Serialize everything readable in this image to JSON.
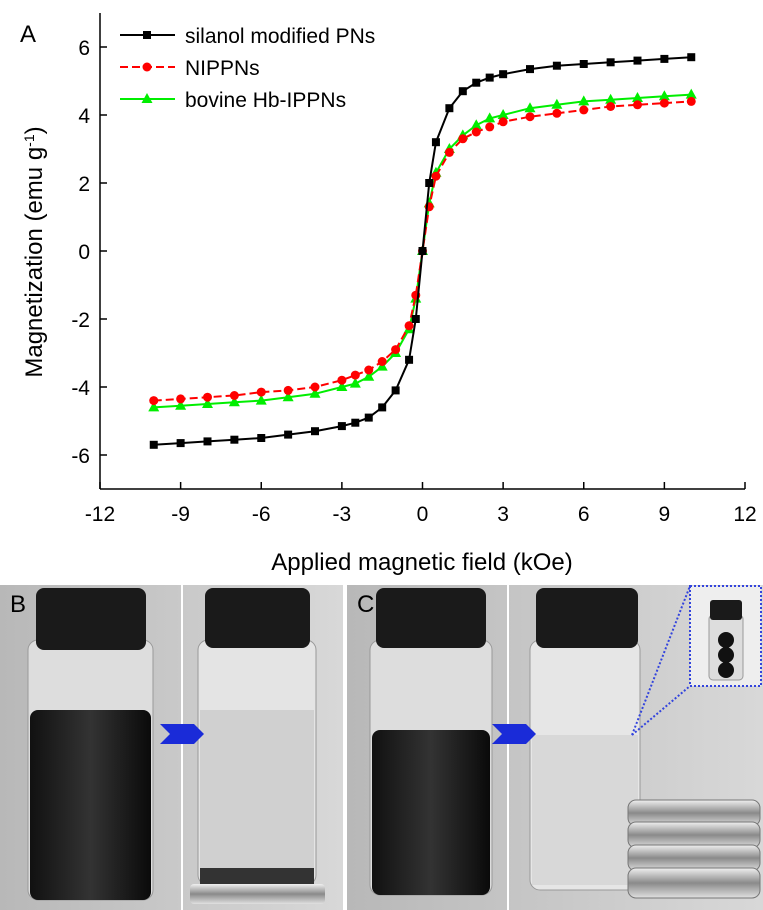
{
  "chart_data": {
    "type": "line",
    "panel_label": "A",
    "x_label": "Applied magnetic field (kOe)",
    "y_label": {
      "text": "Magnetization (emu g",
      "superscript": "-1",
      "suffix": ")"
    },
    "x": [
      -10,
      -9,
      -8,
      -7,
      -6,
      -5,
      -4,
      -3,
      -2.5,
      -2,
      -1.5,
      -1,
      -0.5,
      -0.25,
      0,
      0.25,
      0.5,
      1,
      1.5,
      2,
      2.5,
      3,
      4,
      5,
      6,
      7,
      8,
      9,
      10
    ],
    "series": [
      {
        "name": "silanol modified PNs",
        "color": "#000000",
        "marker": "square",
        "line_style": "solid",
        "values": [
          -5.7,
          -5.65,
          -5.6,
          -5.55,
          -5.5,
          -5.4,
          -5.3,
          -5.15,
          -5.05,
          -4.9,
          -4.6,
          -4.1,
          -3.2,
          -2.0,
          0,
          2.0,
          3.2,
          4.2,
          4.7,
          4.95,
          5.1,
          5.2,
          5.35,
          5.45,
          5.5,
          5.55,
          5.6,
          5.65,
          5.7
        ]
      },
      {
        "name": "NIPPNs",
        "color": "#ff0000",
        "marker": "circle",
        "line_style": "dashed",
        "values": [
          -4.4,
          -4.35,
          -4.3,
          -4.25,
          -4.15,
          -4.1,
          -4.0,
          -3.8,
          -3.65,
          -3.5,
          -3.25,
          -2.9,
          -2.2,
          -1.3,
          0,
          1.3,
          2.2,
          2.9,
          3.3,
          3.5,
          3.65,
          3.8,
          3.95,
          4.05,
          4.15,
          4.25,
          4.3,
          4.35,
          4.4
        ]
      },
      {
        "name": "bovine Hb-IPPNs",
        "color": "#00ee00",
        "marker": "triangle",
        "line_style": "solid",
        "values": [
          -4.6,
          -4.55,
          -4.5,
          -4.45,
          -4.4,
          -4.3,
          -4.2,
          -4.0,
          -3.9,
          -3.7,
          -3.4,
          -3.0,
          -2.3,
          -1.4,
          0,
          1.4,
          2.3,
          3.0,
          3.4,
          3.7,
          3.9,
          4.0,
          4.2,
          4.3,
          4.4,
          4.45,
          4.5,
          4.55,
          4.6
        ]
      }
    ],
    "xlim": [
      -12,
      12
    ],
    "xticks": [
      -12,
      -9,
      -6,
      -3,
      0,
      3,
      6,
      9,
      12
    ],
    "ylim": [
      -7,
      7
    ],
    "yticks": [
      -6,
      -4,
      -2,
      0,
      2,
      4,
      6
    ],
    "legend": "upper left"
  },
  "photos": {
    "panel_b": "B",
    "panel_c": "C"
  }
}
